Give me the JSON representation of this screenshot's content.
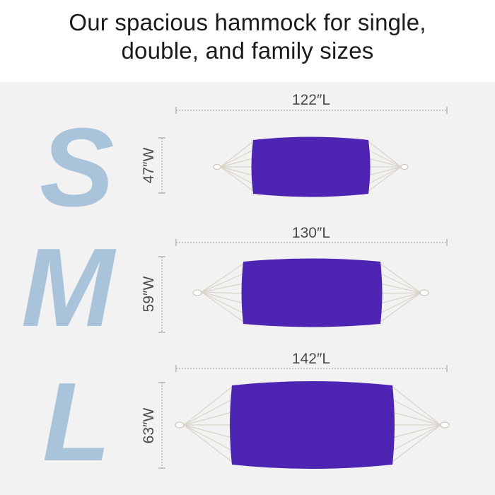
{
  "headline": {
    "line1": "Our spacious hammock for single,",
    "line2": "double, and family sizes"
  },
  "colors": {
    "fabric": "#4e24b3",
    "letter": "#a9c3da",
    "rope": "#d9d4c8",
    "background": "#f2f2f2",
    "dimension_line": "#9a9a9a"
  },
  "sizes": [
    {
      "letter": "S",
      "length_label": "122″L",
      "width_label": "47″W",
      "length_in": 122,
      "width_in": 47
    },
    {
      "letter": "M",
      "length_label": "130″L",
      "width_label": "59″W",
      "length_in": 130,
      "width_in": 59
    },
    {
      "letter": "L",
      "length_label": "142″L",
      "width_label": "63″W",
      "length_in": 142,
      "width_in": 63
    }
  ]
}
